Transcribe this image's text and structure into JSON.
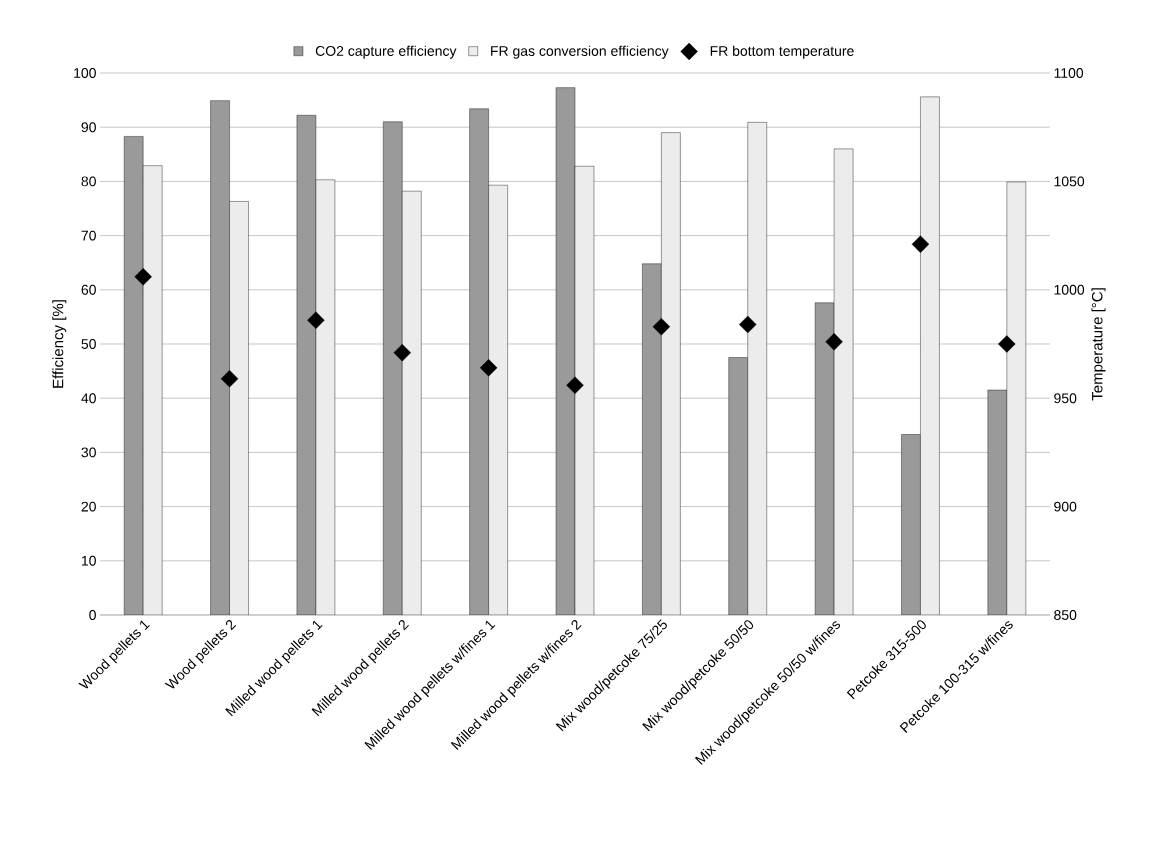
{
  "chart_data": {
    "type": "bar",
    "ylabel": "Efficiency [%]",
    "y2label": "Temperature [°C]",
    "categories": [
      "Wood pellets 1",
      "Wood pellets 2",
      "Milled wood pellets 1",
      "Milled wood pellets 2",
      "Milled wood pellets w/fines 1",
      "Milled wood pellets w/fines 2",
      "Mix wood/petcoke 75/25",
      "Mix wood/petcoke 50/50",
      "Mix wood/petcoke 50/50 w/fines",
      "Petcoke 315-500",
      "Petcoke 100-315 w/fines"
    ],
    "series": [
      {
        "name": "CO2 capture efficiency",
        "color": "#9a9a9a",
        "values": [
          88.3,
          94.9,
          92.2,
          91.0,
          93.4,
          97.3,
          64.8,
          47.5,
          57.6,
          33.3,
          41.5
        ]
      },
      {
        "name": "FR gas conversion efficiency",
        "color": "#ececec",
        "values": [
          82.9,
          76.3,
          80.3,
          78.2,
          79.3,
          82.8,
          89.0,
          90.9,
          86.0,
          95.6,
          79.9
        ]
      },
      {
        "name": "FR bottom temperature",
        "type": "scatter",
        "axis": "y2",
        "color": "#000000",
        "marker": "diamond",
        "values": [
          1006,
          959,
          986,
          971,
          964,
          956,
          983,
          984,
          976,
          1021,
          975
        ]
      }
    ],
    "ylim": [
      0,
      100
    ],
    "yticks": [
      0,
      10,
      20,
      30,
      40,
      50,
      60,
      70,
      80,
      90,
      100
    ],
    "y2lim": [
      850,
      1100
    ],
    "y2ticks": [
      850,
      900,
      950,
      1000,
      1050,
      1100
    ],
    "grid": "y",
    "legend": "top"
  }
}
